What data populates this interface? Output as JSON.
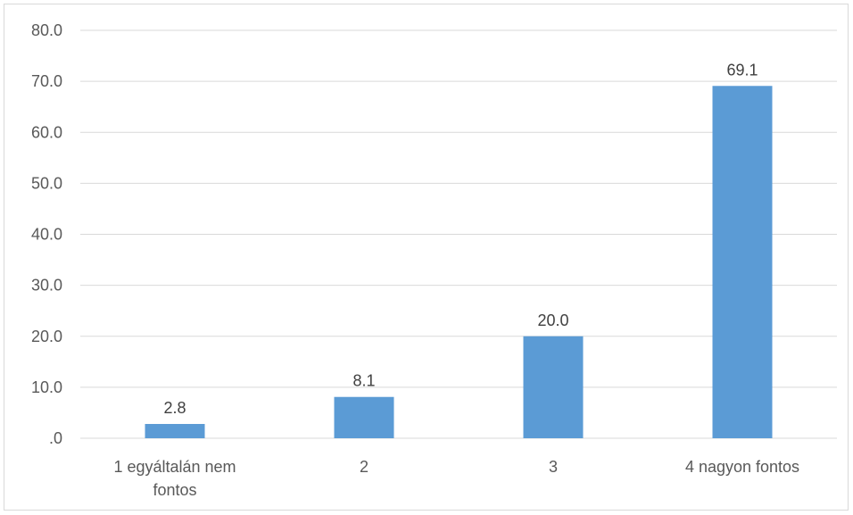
{
  "chart_data": {
    "type": "bar",
    "categories": [
      [
        "1 egyáltalán nem",
        "fontos"
      ],
      [
        "2"
      ],
      [
        "3"
      ],
      [
        "4 nagyon fontos"
      ]
    ],
    "values": [
      2.8,
      8.1,
      20.0,
      69.1
    ],
    "data_labels": [
      "2.8",
      "8.1",
      "20.0",
      "69.1"
    ],
    "ylim": [
      0,
      80
    ],
    "yticks": [
      0,
      10,
      20,
      30,
      40,
      50,
      60,
      70,
      80
    ],
    "ytick_labels": [
      ".0",
      "10.0",
      "20.0",
      "30.0",
      "40.0",
      "50.0",
      "60.0",
      "70.0",
      "80.0"
    ],
    "title": "",
    "xlabel": "",
    "ylabel": "",
    "grid": true,
    "legend": false,
    "bar_color": "#5b9bd5",
    "grid_color": "#d9d9d9"
  }
}
